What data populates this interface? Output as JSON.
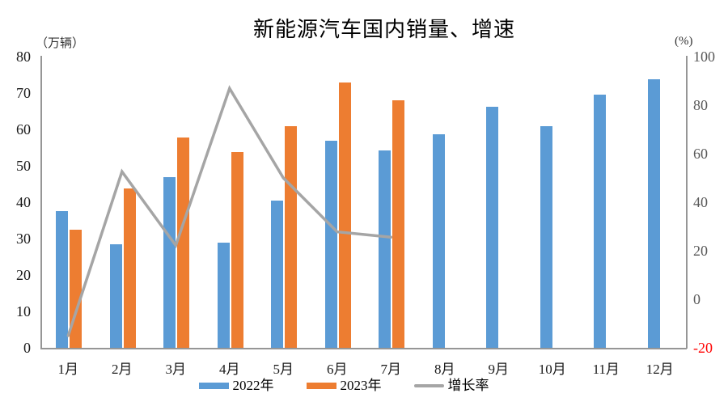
{
  "title": "新能源汽车国内销量、增速",
  "left_axis": {
    "unit": "（万辆）",
    "ticks": [
      80,
      70,
      60,
      50,
      40,
      30,
      20,
      10,
      0
    ]
  },
  "right_axis": {
    "unit": "(%)",
    "ticks": [
      100,
      80,
      60,
      40,
      20,
      0,
      -20
    ],
    "negative_tick_color": "#ff0000"
  },
  "legend": [
    {
      "label": "2022年",
      "color": "#5B9BD5",
      "swatch": "bar"
    },
    {
      "label": "2023年",
      "color": "#ED7D31",
      "swatch": "bar"
    },
    {
      "label": "增长率",
      "color": "#A5A5A5",
      "swatch": "line"
    }
  ],
  "colors": {
    "bar_2022": "#5B9BD5",
    "bar_2023": "#ED7D31",
    "growth_line": "#A5A5A5",
    "axis_line": "#969696",
    "negative_label": "#ff0000"
  },
  "chart_data": {
    "type": "bar",
    "subtype": "grouped bars with secondary-axis line",
    "title": "新能源汽车国内销量、增速",
    "categories": [
      "1月",
      "2月",
      "3月",
      "4月",
      "5月",
      "6月",
      "7月",
      "8月",
      "9月",
      "10月",
      "11月",
      "12月"
    ],
    "series": [
      {
        "name": "2022年",
        "type": "bar",
        "axis": "left",
        "color": "#5B9BD5",
        "values": [
          37.5,
          28.5,
          46.8,
          28.8,
          40.4,
          57.0,
          54.2,
          58.6,
          66.2,
          60.9,
          69.5,
          73.7
        ]
      },
      {
        "name": "2023年",
        "type": "bar",
        "axis": "left",
        "color": "#ED7D31",
        "values": [
          32.4,
          43.7,
          57.8,
          53.7,
          61.0,
          73.0,
          68.0,
          null,
          null,
          null,
          null,
          null
        ]
      },
      {
        "name": "增长率",
        "type": "line",
        "axis": "right",
        "color": "#A5A5A5",
        "values": [
          -15.0,
          52.6,
          22.2,
          86.9,
          50.0,
          27.8,
          25.6,
          null,
          null,
          null,
          null,
          null
        ]
      }
    ],
    "left_ylabel": "（万辆）",
    "right_ylabel": "(%)",
    "left_ylim": [
      0,
      80
    ],
    "right_ylim": [
      -20,
      100
    ],
    "grid": false,
    "legend_position": "bottom"
  }
}
